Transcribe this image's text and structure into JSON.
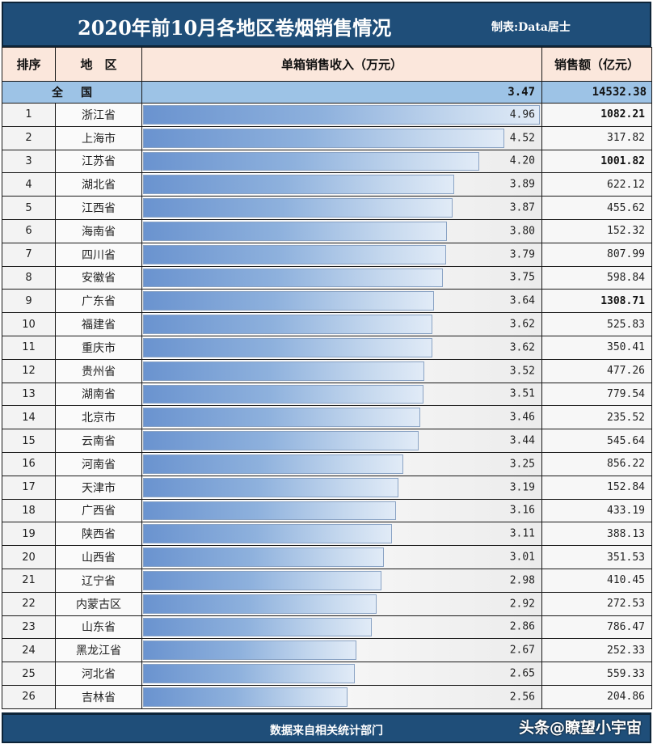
{
  "header": {
    "title": "2020年前10月各地区卷烟销售情况",
    "credit": "制表:Data居士"
  },
  "columns": {
    "rank": "排序",
    "region": "地　区",
    "unit_income": "单箱销售收入（万元）",
    "sales": "销售额（亿元）"
  },
  "national": {
    "label": "全国",
    "unit_income": "3.47",
    "sales": "14532.38"
  },
  "rows": [
    {
      "rank": "1",
      "region": "浙江省",
      "unit_income": "4.96",
      "sales": "1082.21",
      "bold": true
    },
    {
      "rank": "2",
      "region": "上海市",
      "unit_income": "4.52",
      "sales": "317.82",
      "bold": false
    },
    {
      "rank": "3",
      "region": "江苏省",
      "unit_income": "4.20",
      "sales": "1001.82",
      "bold": true
    },
    {
      "rank": "4",
      "region": "湖北省",
      "unit_income": "3.89",
      "sales": "622.12",
      "bold": false
    },
    {
      "rank": "5",
      "region": "江西省",
      "unit_income": "3.87",
      "sales": "455.62",
      "bold": false
    },
    {
      "rank": "6",
      "region": "海南省",
      "unit_income": "3.80",
      "sales": "152.32",
      "bold": false
    },
    {
      "rank": "7",
      "region": "四川省",
      "unit_income": "3.79",
      "sales": "807.99",
      "bold": false
    },
    {
      "rank": "8",
      "region": "安徽省",
      "unit_income": "3.75",
      "sales": "598.84",
      "bold": false
    },
    {
      "rank": "9",
      "region": "广东省",
      "unit_income": "3.64",
      "sales": "1308.71",
      "bold": true
    },
    {
      "rank": "10",
      "region": "福建省",
      "unit_income": "3.62",
      "sales": "525.83",
      "bold": false
    },
    {
      "rank": "11",
      "region": "重庆市",
      "unit_income": "3.62",
      "sales": "350.41",
      "bold": false
    },
    {
      "rank": "12",
      "region": "贵州省",
      "unit_income": "3.52",
      "sales": "477.26",
      "bold": false
    },
    {
      "rank": "13",
      "region": "湖南省",
      "unit_income": "3.51",
      "sales": "779.54",
      "bold": false
    },
    {
      "rank": "14",
      "region": "北京市",
      "unit_income": "3.46",
      "sales": "235.52",
      "bold": false
    },
    {
      "rank": "15",
      "region": "云南省",
      "unit_income": "3.44",
      "sales": "545.64",
      "bold": false
    },
    {
      "rank": "16",
      "region": "河南省",
      "unit_income": "3.25",
      "sales": "856.22",
      "bold": false
    },
    {
      "rank": "17",
      "region": "天津市",
      "unit_income": "3.19",
      "sales": "152.84",
      "bold": false
    },
    {
      "rank": "18",
      "region": "广西省",
      "unit_income": "3.16",
      "sales": "433.19",
      "bold": false
    },
    {
      "rank": "19",
      "region": "陕西省",
      "unit_income": "3.11",
      "sales": "388.13",
      "bold": false
    },
    {
      "rank": "20",
      "region": "山西省",
      "unit_income": "3.01",
      "sales": "351.53",
      "bold": false
    },
    {
      "rank": "21",
      "region": "辽宁省",
      "unit_income": "2.98",
      "sales": "410.45",
      "bold": false
    },
    {
      "rank": "22",
      "region": "内蒙古区",
      "unit_income": "2.92",
      "sales": "272.53",
      "bold": false
    },
    {
      "rank": "23",
      "region": "山东省",
      "unit_income": "2.86",
      "sales": "786.47",
      "bold": false
    },
    {
      "rank": "24",
      "region": "黑龙江省",
      "unit_income": "2.67",
      "sales": "252.33",
      "bold": false
    },
    {
      "rank": "25",
      "region": "河北省",
      "unit_income": "2.65",
      "sales": "559.33",
      "bold": false
    },
    {
      "rank": "26",
      "region": "吉林省",
      "unit_income": "2.56",
      "sales": "204.86",
      "bold": false
    }
  ],
  "footer": {
    "source": "数据来自相关统计部门",
    "watermark": "头条@瞭望小宇宙"
  },
  "colors": {
    "title_bg": "#1f4e79",
    "header_bg": "#fbe7dc",
    "national_bg": "#9dc3e6",
    "bar_start": "#6a93cf",
    "bar_end": "#e1ebf7"
  },
  "chart_data": {
    "type": "bar",
    "orientation": "horizontal",
    "title": "2020年前10月各地区卷烟销售情况",
    "subtitle": "制表:Data居士",
    "xlabel": "单箱销售收入（万元）",
    "ylabel": "地区",
    "categories": [
      "浙江省",
      "上海市",
      "江苏省",
      "湖北省",
      "江西省",
      "海南省",
      "四川省",
      "安徽省",
      "广东省",
      "福建省",
      "重庆市",
      "贵州省",
      "湖南省",
      "北京市",
      "云南省",
      "河南省",
      "天津市",
      "广西省",
      "陕西省",
      "山西省",
      "辽宁省",
      "内蒙古区",
      "山东省",
      "黑龙江省",
      "河北省",
      "吉林省"
    ],
    "series": [
      {
        "name": "单箱销售收入（万元）",
        "values": [
          4.96,
          4.52,
          4.2,
          3.89,
          3.87,
          3.8,
          3.79,
          3.75,
          3.64,
          3.62,
          3.62,
          3.52,
          3.51,
          3.46,
          3.44,
          3.25,
          3.19,
          3.16,
          3.11,
          3.01,
          2.98,
          2.92,
          2.86,
          2.67,
          2.65,
          2.56
        ]
      },
      {
        "name": "销售额（亿元）",
        "values": [
          1082.21,
          317.82,
          1001.82,
          622.12,
          455.62,
          152.32,
          807.99,
          598.84,
          1308.71,
          525.83,
          350.41,
          477.26,
          779.54,
          235.52,
          545.64,
          856.22,
          152.84,
          433.19,
          388.13,
          351.53,
          410.45,
          272.53,
          786.47,
          252.33,
          559.33,
          204.86
        ]
      }
    ],
    "national_total": {
      "unit_income": 3.47,
      "sales": 14532.38
    },
    "xlim": [
      0,
      4.96
    ],
    "grid": false,
    "legend": "none",
    "annotation": "数据来自相关统计部门"
  }
}
